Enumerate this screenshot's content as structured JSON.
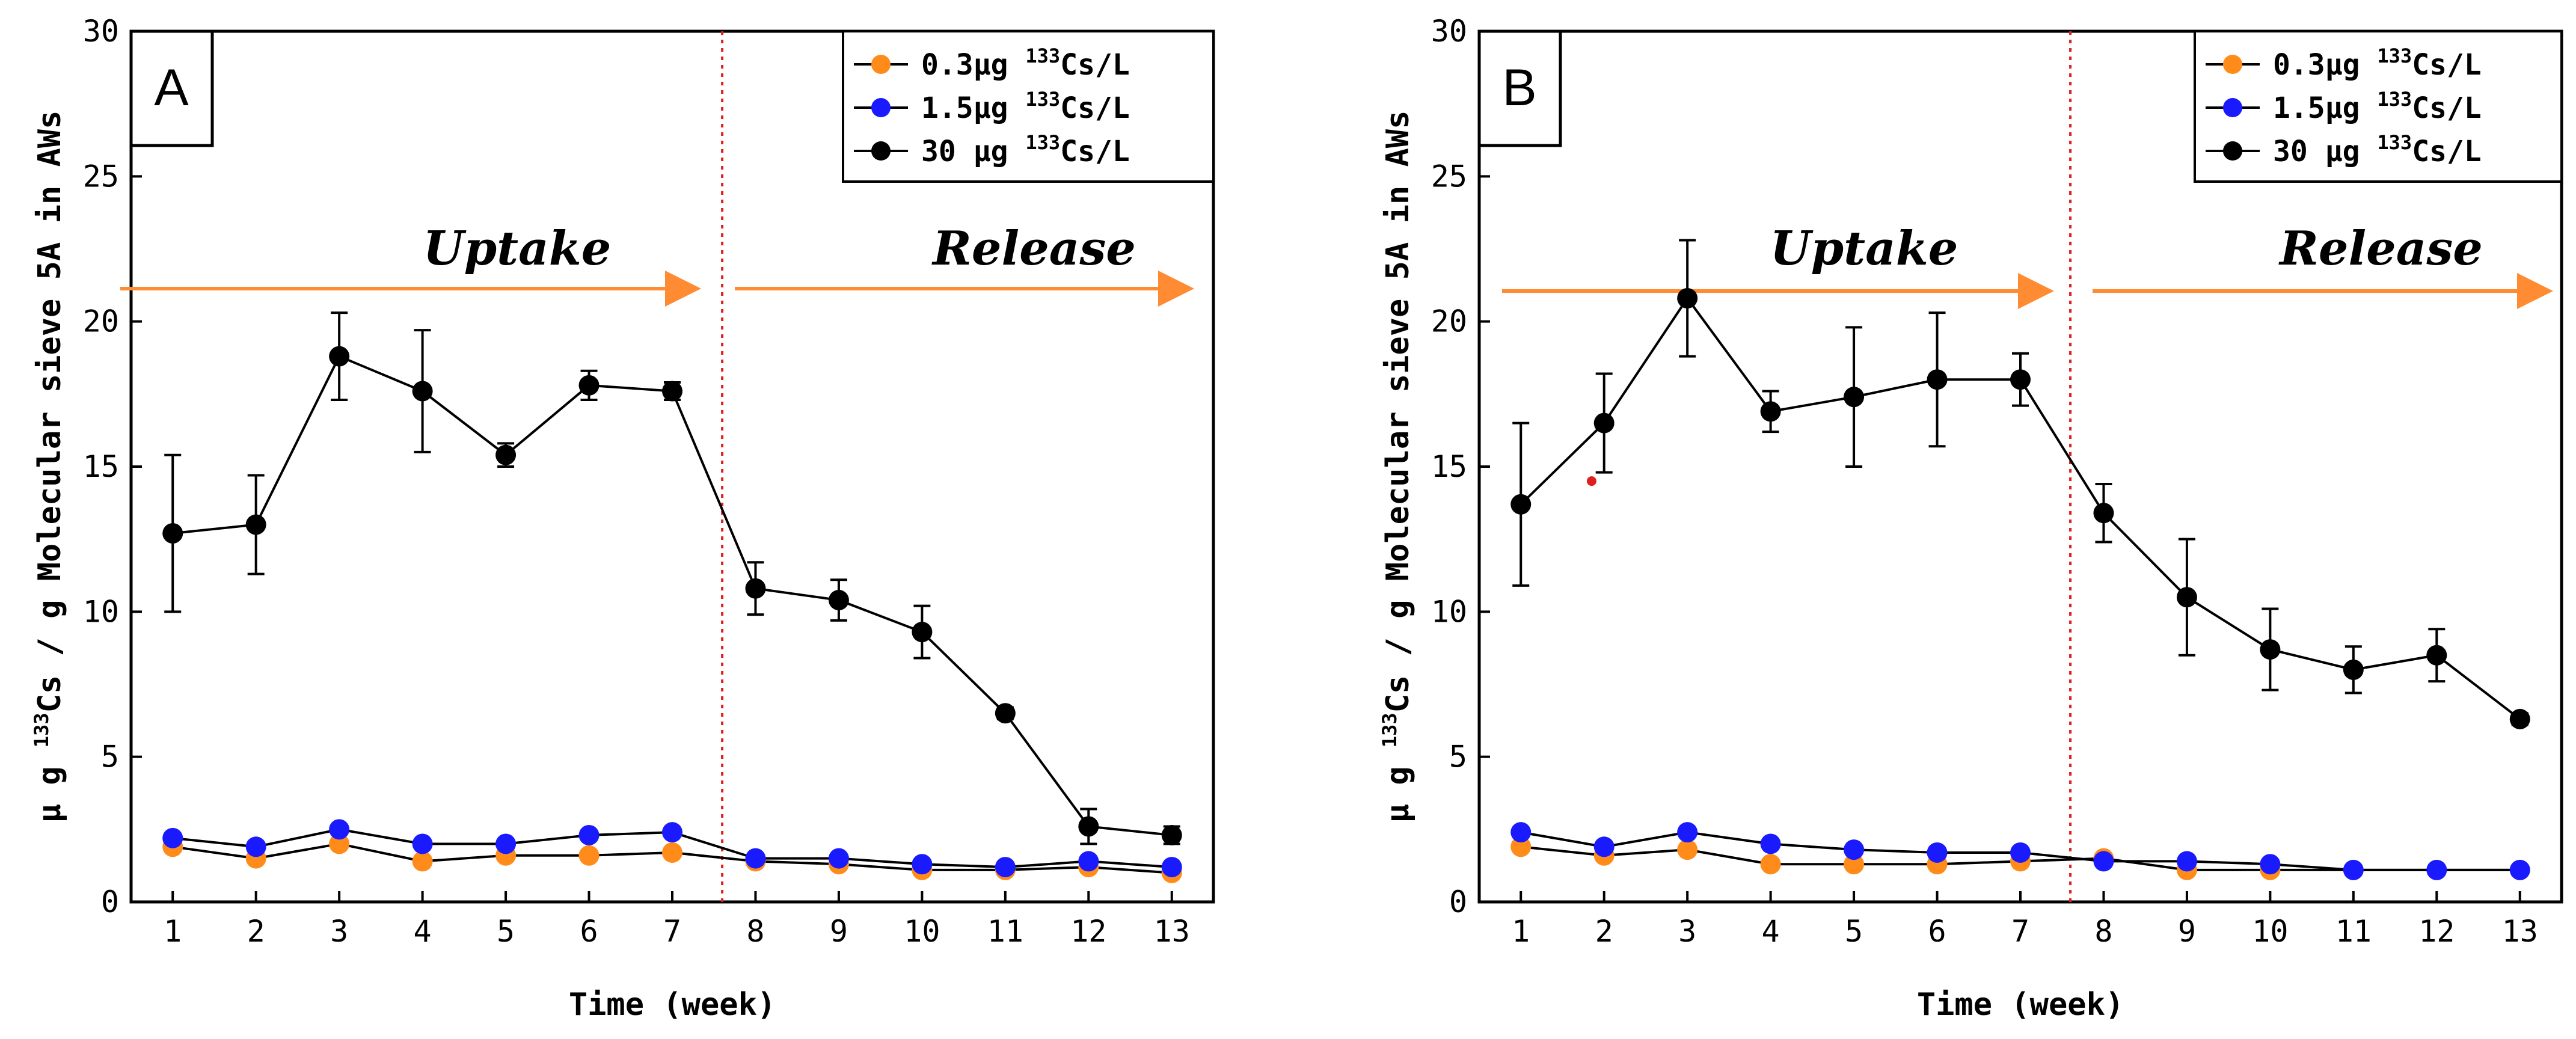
{
  "colors": {
    "series_low": "#FF8C1A",
    "series_mid": "#1A1AFF",
    "series_high": "#000000",
    "arrow": "#FF8C33",
    "divider": "#E02020"
  },
  "chart_data": [
    {
      "type": "line",
      "panel": "A",
      "title": "",
      "xlabel": "Time (week)",
      "ylabel_parts": {
        "prefix": "μ g ",
        "isotope": "133",
        "rest": "Cs / g Molecular sieve 5A in AWs"
      },
      "xlim": [
        0.5,
        13.5
      ],
      "ylim": [
        0,
        30
      ],
      "x": [
        1,
        2,
        3,
        4,
        5,
        6,
        7,
        8,
        9,
        10,
        11,
        12,
        13
      ],
      "x_ticks": [
        "1",
        "2",
        "3",
        "4",
        "5",
        "6",
        "7",
        "8",
        "9",
        "10",
        "11",
        "12",
        "13"
      ],
      "y_ticks": [
        "0",
        "5",
        "10",
        "15",
        "20",
        "25",
        "30"
      ],
      "divider_x": 7.6,
      "phases": {
        "uptake": "Uptake",
        "release": "Release"
      },
      "legend": {
        "placement": "top-right"
      },
      "series": [
        {
          "name": "0.3μg 133Cs/L",
          "label_prefix": "0.3μg ",
          "isotope": "133",
          "label_suffix": "Cs/L",
          "color_key": "series_low",
          "values": [
            1.9,
            1.5,
            2.0,
            1.4,
            1.6,
            1.6,
            1.7,
            1.4,
            1.3,
            1.1,
            1.1,
            1.2,
            1.0
          ],
          "errors": [
            0,
            0,
            0,
            0,
            0,
            0,
            0,
            0,
            0,
            0,
            0,
            0,
            0
          ]
        },
        {
          "name": "1.5μg 133Cs/L",
          "label_prefix": "1.5μg ",
          "isotope": "133",
          "label_suffix": "Cs/L",
          "color_key": "series_mid",
          "values": [
            2.2,
            1.9,
            2.5,
            2.0,
            2.0,
            2.3,
            2.4,
            1.5,
            1.5,
            1.3,
            1.2,
            1.4,
            1.2
          ],
          "errors": [
            0,
            0,
            0,
            0,
            0,
            0,
            0,
            0,
            0,
            0,
            0,
            0,
            0
          ]
        },
        {
          "name": "30 μg 133Cs/L",
          "label_prefix": "30 μg ",
          "isotope": "133",
          "label_suffix": "Cs/L",
          "color_key": "series_high",
          "values": [
            12.7,
            13.0,
            18.8,
            17.6,
            15.4,
            17.8,
            17.6,
            10.8,
            10.4,
            9.3,
            6.5,
            2.6,
            2.3
          ],
          "errors": [
            2.7,
            1.7,
            1.5,
            2.1,
            0.4,
            0.5,
            0.3,
            0.9,
            0.7,
            0.9,
            0.2,
            0.6,
            0.3
          ]
        }
      ]
    },
    {
      "type": "line",
      "panel": "B",
      "title": "",
      "xlabel": "Time (week)",
      "ylabel_parts": {
        "prefix": "μ g ",
        "isotope": "133",
        "rest": "Cs / g Molecular sieve 5A in AWs"
      },
      "xlim": [
        0.5,
        13.5
      ],
      "ylim": [
        0,
        30
      ],
      "x": [
        1,
        2,
        3,
        4,
        5,
        6,
        7,
        8,
        9,
        10,
        11,
        12,
        13
      ],
      "x_ticks": [
        "1",
        "2",
        "3",
        "4",
        "5",
        "6",
        "7",
        "8",
        "9",
        "10",
        "11",
        "12",
        "13"
      ],
      "y_ticks": [
        "0",
        "5",
        "10",
        "15",
        "20",
        "25",
        "30"
      ],
      "divider_x": 7.6,
      "phases": {
        "uptake": "Uptake",
        "release": "Release"
      },
      "legend": {
        "placement": "top-right"
      },
      "stray_point": {
        "x": 1.85,
        "y": 14.5
      },
      "series": [
        {
          "name": "0.3μg 133Cs/L",
          "label_prefix": "0.3μg ",
          "isotope": "133",
          "label_suffix": "Cs/L",
          "color_key": "series_low",
          "values": [
            1.9,
            1.6,
            1.8,
            1.3,
            1.3,
            1.3,
            1.4,
            1.5,
            1.1,
            1.1,
            1.1,
            1.1,
            1.1
          ],
          "errors": [
            0,
            0,
            0,
            0,
            0,
            0,
            0,
            0,
            0,
            0,
            0,
            0,
            0
          ]
        },
        {
          "name": "1.5μg 133Cs/L",
          "label_prefix": "1.5μg ",
          "isotope": "133",
          "label_suffix": "Cs/L",
          "color_key": "series_mid",
          "values": [
            2.4,
            1.9,
            2.4,
            2.0,
            1.8,
            1.7,
            1.7,
            1.4,
            1.4,
            1.3,
            1.1,
            1.1,
            1.1
          ],
          "errors": [
            0,
            0,
            0,
            0,
            0,
            0,
            0,
            0,
            0,
            0,
            0,
            0,
            0
          ]
        },
        {
          "name": "30 μg 133Cs/L",
          "label_prefix": "30 μg ",
          "isotope": "133",
          "label_suffix": "Cs/L",
          "color_key": "series_high",
          "values": [
            13.7,
            16.5,
            20.8,
            16.9,
            17.4,
            18.0,
            18.0,
            13.4,
            10.5,
            8.7,
            8.0,
            8.5,
            6.3
          ],
          "errors": [
            2.8,
            1.7,
            2.0,
            0.7,
            2.4,
            2.3,
            0.9,
            1.0,
            2.0,
            1.4,
            0.8,
            0.9,
            0.2
          ]
        }
      ]
    }
  ]
}
